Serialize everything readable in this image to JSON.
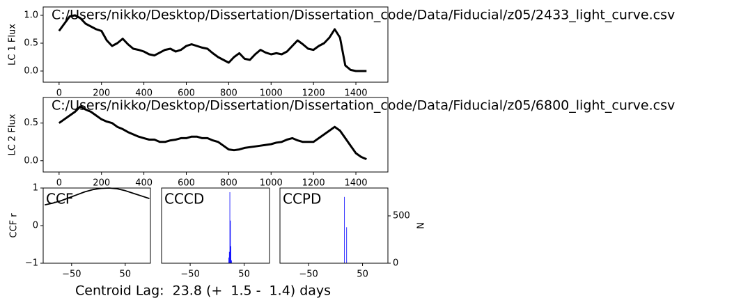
{
  "chart_data": [
    {
      "type": "line",
      "title": "C:/Users/nikko/Desktop/Dissertation/Dissertation_code/Data/Fiducial/z05/2433_light_curve.csv",
      "ylabel": "LC 1 Flux",
      "color": "#000000",
      "x": [
        0,
        25,
        50,
        75,
        100,
        125,
        150,
        175,
        200,
        225,
        250,
        275,
        300,
        325,
        350,
        375,
        400,
        425,
        450,
        475,
        500,
        525,
        550,
        575,
        600,
        625,
        650,
        675,
        700,
        725,
        750,
        775,
        800,
        825,
        850,
        875,
        900,
        925,
        950,
        975,
        1000,
        1025,
        1050,
        1075,
        1100,
        1125,
        1150,
        1175,
        1200,
        1225,
        1250,
        1275,
        1300,
        1325,
        1350,
        1375,
        1400,
        1425,
        1450
      ],
      "values": [
        0.72,
        0.85,
        0.98,
        1.0,
        0.95,
        0.85,
        0.8,
        0.75,
        0.72,
        0.55,
        0.45,
        0.5,
        0.58,
        0.48,
        0.4,
        0.38,
        0.35,
        0.3,
        0.28,
        0.33,
        0.38,
        0.4,
        0.35,
        0.38,
        0.45,
        0.48,
        0.45,
        0.42,
        0.4,
        0.32,
        0.25,
        0.2,
        0.15,
        0.25,
        0.32,
        0.22,
        0.2,
        0.3,
        0.38,
        0.33,
        0.3,
        0.32,
        0.3,
        0.35,
        0.45,
        0.55,
        0.48,
        0.4,
        0.38,
        0.45,
        0.5,
        0.6,
        0.75,
        0.6,
        0.1,
        0.02,
        0.0,
        0.0,
        0.0
      ],
      "xlim": [
        -75,
        1551
      ],
      "xticks": [
        0,
        200,
        400,
        600,
        800,
        1000,
        1200,
        1400
      ],
      "ylim": [
        -0.2,
        1.15
      ],
      "yticks": [
        {
          "value": 0,
          "label": "0.0"
        },
        0.5,
        {
          "value": 1,
          "label": "1.0"
        }
      ]
    },
    {
      "type": "line",
      "title": "C:/Users/nikko/Desktop/Dissertation/Dissertation_code/Data/Fiducial/z05/6800_light_curve.csv",
      "ylabel": "LC 2 Flux",
      "color": "#000000",
      "x": [
        0,
        25,
        50,
        75,
        100,
        125,
        150,
        175,
        200,
        225,
        250,
        275,
        300,
        325,
        350,
        375,
        400,
        425,
        450,
        475,
        500,
        525,
        550,
        575,
        600,
        625,
        650,
        675,
        700,
        725,
        750,
        775,
        800,
        825,
        850,
        875,
        900,
        925,
        950,
        975,
        1000,
        1025,
        1050,
        1075,
        1100,
        1125,
        1150,
        1175,
        1200,
        1225,
        1250,
        1275,
        1300,
        1325,
        1350,
        1375,
        1400,
        1425,
        1450
      ],
      "values": [
        0.5,
        0.55,
        0.6,
        0.65,
        0.72,
        0.68,
        0.65,
        0.6,
        0.55,
        0.52,
        0.5,
        0.45,
        0.42,
        0.38,
        0.35,
        0.32,
        0.3,
        0.28,
        0.28,
        0.25,
        0.25,
        0.27,
        0.28,
        0.3,
        0.3,
        0.32,
        0.32,
        0.3,
        0.3,
        0.27,
        0.25,
        0.2,
        0.15,
        0.14,
        0.15,
        0.17,
        0.18,
        0.19,
        0.2,
        0.21,
        0.22,
        0.24,
        0.25,
        0.28,
        0.3,
        0.27,
        0.25,
        0.25,
        0.25,
        0.3,
        0.35,
        0.4,
        0.45,
        0.4,
        0.3,
        0.2,
        0.1,
        0.05,
        0.02
      ],
      "xlim": [
        -75,
        1551
      ],
      "xticks": [
        0,
        200,
        400,
        600,
        800,
        1000,
        1200,
        1400
      ],
      "ylim": [
        -0.15,
        0.84
      ],
      "yticks": [
        {
          "value": 0,
          "label": "0.0"
        },
        0.5
      ]
    },
    {
      "type": "line",
      "annotation": "CCF",
      "ylabel": "CCF r",
      "color": "#000000",
      "x": [
        -100,
        -85,
        -70,
        -55,
        -40,
        -25,
        -10,
        5,
        20,
        35,
        50,
        65,
        80,
        95
      ],
      "values": [
        0.55,
        0.6,
        0.66,
        0.74,
        0.82,
        0.9,
        0.96,
        0.99,
        1.0,
        0.98,
        0.93,
        0.86,
        0.79,
        0.72
      ],
      "xlim": [
        -103,
        97
      ],
      "xticks": [
        {
          "value": -50,
          "label": "−50"
        },
        50
      ],
      "ylim": [
        -1,
        1
      ],
      "yticks": [
        {
          "value": -1,
          "label": "−1"
        },
        0,
        1
      ]
    },
    {
      "type": "histogram",
      "annotation": "CCCD",
      "color": "#0000ff",
      "bins": [
        21,
        22,
        23,
        24,
        25,
        26,
        27
      ],
      "counts": [
        60,
        120,
        750,
        450,
        180,
        30
      ],
      "xlim": [
        -103,
        97
      ],
      "xticks": [
        {
          "value": -50,
          "label": "−50"
        },
        50
      ],
      "ylim": [
        0,
        794
      ]
    },
    {
      "type": "histogram",
      "annotation": "CCPD",
      "color": "#0000ff",
      "y2label": "N",
      "bins": [
        16,
        17,
        18,
        19,
        20,
        21
      ],
      "counts": [
        700,
        0,
        0,
        0,
        380
      ],
      "xlim": [
        -103,
        97
      ],
      "xticks": [
        {
          "value": -50,
          "label": "−50"
        },
        50
      ],
      "y2lim": [
        0,
        794
      ],
      "y2ticks": [
        0,
        500
      ]
    }
  ],
  "caption": "Centroid Lag:  23.8 (+  1.5 -  1.4) days"
}
